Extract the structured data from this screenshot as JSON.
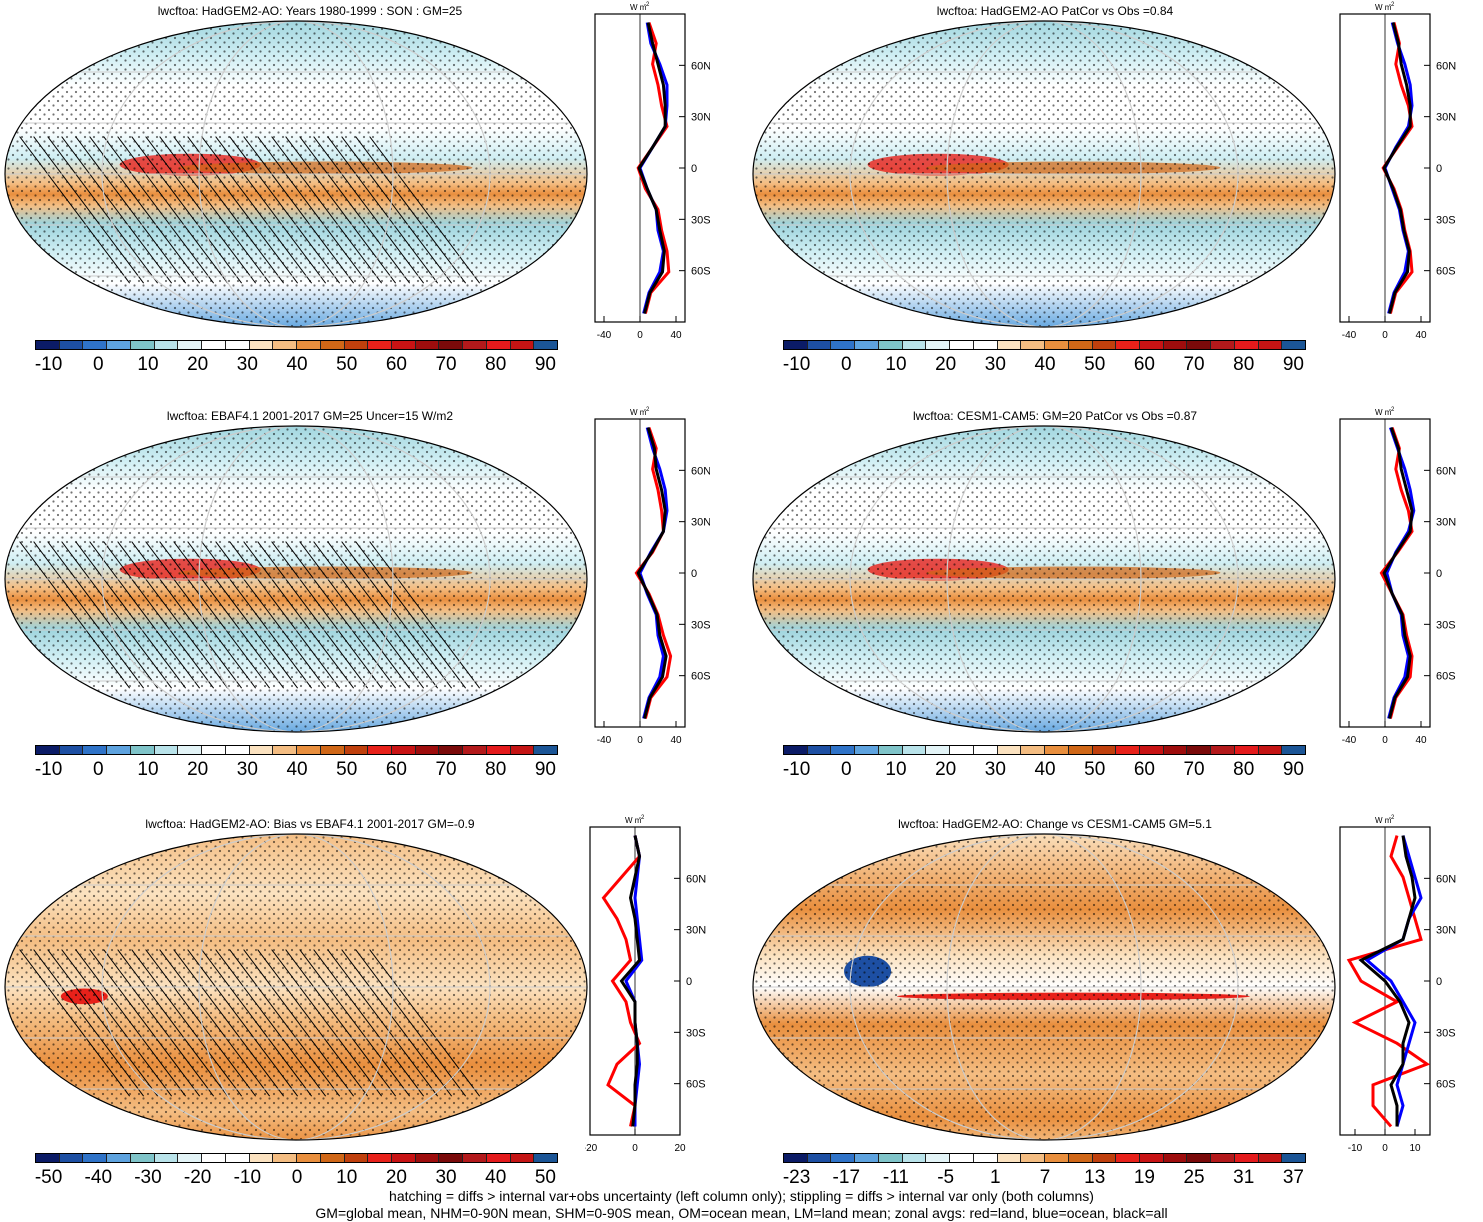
{
  "panels": [
    {
      "title": "lwcftoa: HadGEM2-AO: Years 1980-1999 : SON : GM=25",
      "cbar_labels": [
        "-10",
        "0",
        "10",
        "20",
        "30",
        "40",
        "50",
        "60",
        "70",
        "80",
        "90"
      ],
      "scheme": "abs",
      "hatched": true,
      "zonal_xticks": [
        "-40",
        "0",
        "40"
      ],
      "zonal_xrange": [
        -50,
        50
      ]
    },
    {
      "title": "lwcftoa: HadGEM2-AO PatCor vs Obs =0.84",
      "cbar_labels": [
        "-10",
        "0",
        "10",
        "20",
        "30",
        "40",
        "50",
        "60",
        "70",
        "80",
        "90"
      ],
      "scheme": "abs",
      "hatched": false,
      "zonal_xticks": [
        "-40",
        "0",
        "40"
      ],
      "zonal_xrange": [
        -50,
        50
      ]
    },
    {
      "title": "lwcftoa: EBAF4.1 2001-2017 GM=25 Uncer=15 W/m2",
      "cbar_labels": [
        "-10",
        "0",
        "10",
        "20",
        "30",
        "40",
        "50",
        "60",
        "70",
        "80",
        "90"
      ],
      "scheme": "abs",
      "hatched": true,
      "zonal_xticks": [
        "-40",
        "0",
        "40"
      ],
      "zonal_xrange": [
        -50,
        50
      ]
    },
    {
      "title": "lwcftoa: CESM1-CAM5: GM=20 PatCor vs Obs =0.87",
      "cbar_labels": [
        "-10",
        "0",
        "10",
        "20",
        "30",
        "40",
        "50",
        "60",
        "70",
        "80",
        "90"
      ],
      "scheme": "abs",
      "hatched": false,
      "zonal_xticks": [
        "-40",
        "0",
        "40"
      ],
      "zonal_xrange": [
        -50,
        50
      ]
    },
    {
      "title": "lwcftoa: HadGEM2-AO: Bias vs EBAF4.1 2001-2017  GM=-0.9",
      "cbar_labels": [
        "-50",
        "-40",
        "-30",
        "-20",
        "-10",
        "0",
        "10",
        "20",
        "30",
        "40",
        "50"
      ],
      "scheme": "bias",
      "hatched": true,
      "zonal_xticks": [
        "-20",
        "0",
        "20"
      ],
      "zonal_xrange": [
        -20,
        20
      ]
    },
    {
      "title": "lwcftoa: HadGEM2-AO: Change vs CESM1-CAM5 GM=5.1",
      "cbar_labels": [
        "-23",
        "-17",
        "-11",
        "-5",
        "1",
        "7",
        "13",
        "19",
        "25",
        "31",
        "37"
      ],
      "scheme": "change",
      "hatched": false,
      "zonal_xticks": [
        "-10",
        "0",
        "10"
      ],
      "zonal_xrange": [
        -15,
        15
      ]
    }
  ],
  "zonal_unit": "W m",
  "zonal_unit_sup": "-2",
  "lat_labels": [
    "60N",
    "30N",
    "0",
    "30S",
    "60S"
  ],
  "colors": {
    "abs_scale": [
      "#0b1b66",
      "#1d4fa3",
      "#2f73c8",
      "#5ea3df",
      "#7fc4c9",
      "#b9e3ea",
      "#e3f4f7",
      "#ffffff",
      "#ffffff",
      "#fbe2c0",
      "#f4bd82",
      "#e98f3e",
      "#d06717",
      "#c0400d",
      "#e8211a",
      "#c81314",
      "#9e0d0d",
      "#7a0a0a",
      "#b3191b",
      "#e41a1c",
      "#c41414",
      "#1b5596"
    ],
    "bias_scale": [
      "#0b1b66",
      "#1d4fa3",
      "#2f73c8",
      "#5ea3df",
      "#7fc4c9",
      "#b9e3ea",
      "#e3f4f7",
      "#ffffff",
      "#ffffff",
      "#fbe2c0",
      "#f4bd82",
      "#e98f3e",
      "#d06717",
      "#c0400d",
      "#e8211a",
      "#c81314",
      "#9e0d0d",
      "#7a0a0a",
      "#b3191b",
      "#e41a1c",
      "#c41414",
      "#1b5596"
    ],
    "zonal_land": "#ff0000",
    "zonal_ocean": "#0000ff",
    "zonal_all": "#000000"
  },
  "footer_line1": "hatching = diffs > internal var+obs uncertainty (left column only); stippling = diffs > internal var only (both columns)",
  "footer_line2": "GM=global mean, NHM=0-90N mean, SHM=0-90S mean, OM=ocean mean, LM=land mean; zonal avgs: red=land, blue=ocean, black=all"
}
